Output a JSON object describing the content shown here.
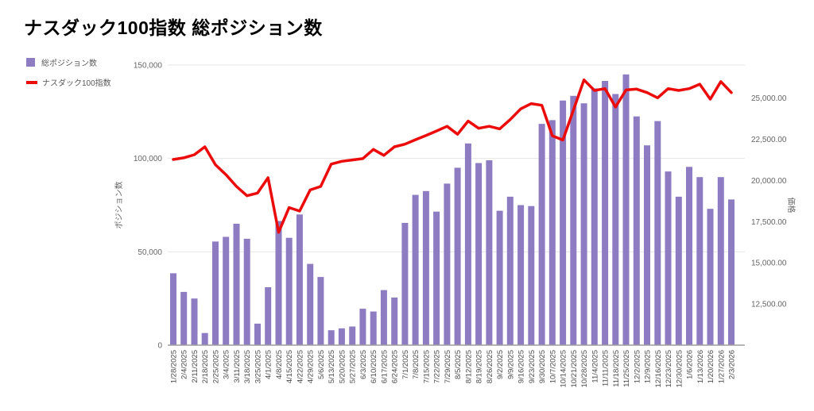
{
  "chart_data": {
    "type": "combo",
    "title": "ナスダック100指数 総ポジション数",
    "legend_position": "top-left",
    "grid": "horizontal",
    "categories": [
      "1/28/2025",
      "2/4/2025",
      "2/11/2025",
      "2/18/2025",
      "2/25/2025",
      "3/4/2025",
      "3/11/2025",
      "3/18/2025",
      "3/25/2025",
      "4/1/2025",
      "4/8/2025",
      "4/15/2025",
      "4/22/2025",
      "4/29/2025",
      "5/6/2025",
      "5/13/2025",
      "5/20/2025",
      "5/27/2025",
      "6/3/2025",
      "6/10/2025",
      "6/17/2025",
      "6/24/2025",
      "7/1/2025",
      "7/8/2025",
      "7/15/2025",
      "7/22/2025",
      "7/29/2025",
      "8/5/2025",
      "8/12/2025",
      "8/19/2025",
      "8/26/2025",
      "9/2/2025",
      "9/9/2025",
      "9/16/2025",
      "9/23/2025",
      "9/30/2025",
      "10/7/2025",
      "10/14/2025",
      "10/21/2025",
      "10/28/2025",
      "11/4/2025",
      "11/11/2025",
      "11/18/2025",
      "11/25/2025",
      "12/2/2025",
      "12/9/2025",
      "12/16/2025",
      "12/23/2025",
      "12/30/2025",
      "1/6/2026",
      "1/13/2026",
      "1/20/2026",
      "1/27/2026",
      "2/3/2026"
    ],
    "series": [
      {
        "name": "総ポジション数",
        "type": "bar",
        "axis": "left",
        "color": "#8e7cc3",
        "values": [
          38500,
          28500,
          25000,
          6500,
          55500,
          58000,
          65000,
          57000,
          11500,
          31000,
          66500,
          57500,
          70000,
          43500,
          36500,
          8000,
          9000,
          10000,
          19500,
          18000,
          29500,
          25500,
          65500,
          80500,
          82500,
          71500,
          86500,
          95000,
          108000,
          97500,
          99000,
          72000,
          79500,
          75000,
          74500,
          118500,
          120500,
          131000,
          133500,
          129500,
          137500,
          141500,
          134500,
          145000,
          122500,
          107000,
          120000,
          93000,
          79500,
          95500,
          90000,
          73000,
          90000,
          78000
        ]
      },
      {
        "name": "ナスダック100指数",
        "type": "line",
        "axis": "right",
        "color": "#ea0b0a",
        "values": [
          21270,
          21370,
          21560,
          22040,
          20950,
          20350,
          19630,
          19070,
          19230,
          20160,
          16850,
          18350,
          18140,
          19420,
          19630,
          20990,
          21160,
          21240,
          21320,
          21880,
          21520,
          22040,
          22200,
          22470,
          22730,
          23000,
          23280,
          22800,
          23600,
          23160,
          23280,
          23130,
          23690,
          24340,
          24660,
          24560,
          22710,
          22450,
          24260,
          26100,
          25460,
          25570,
          24450,
          25490,
          25540,
          25330,
          25010,
          25570,
          25460,
          25570,
          25840,
          24930,
          26000,
          25330
        ]
      }
    ],
    "left_axis": {
      "title": "ポジション数",
      "min": 0,
      "max": 150000,
      "tick_values": [
        0,
        50000,
        100000,
        150000
      ],
      "tick_labels": [
        "0",
        "50,000",
        "100,000",
        "150,000"
      ]
    },
    "right_axis": {
      "title": "価格",
      "min": 10000,
      "max": 27000,
      "tick_values": [
        12500,
        15000,
        17500,
        20000,
        22500,
        25000
      ],
      "tick_labels": [
        "12,500.00",
        "15,000.00",
        "17,500.00",
        "20,000.00",
        "22,500.00",
        "25,000.00"
      ]
    }
  },
  "colors": {
    "background": "#ffffff",
    "gridline": "#e6e6e6",
    "axis_line": "#9e9e9e",
    "y_tick_text": "#666666",
    "x_tick_text": "#4a4a4a",
    "axis_title_text": "#666666",
    "title_text": "#000000",
    "bar": "#8e7cc3",
    "line": "#ea0b0a"
  }
}
